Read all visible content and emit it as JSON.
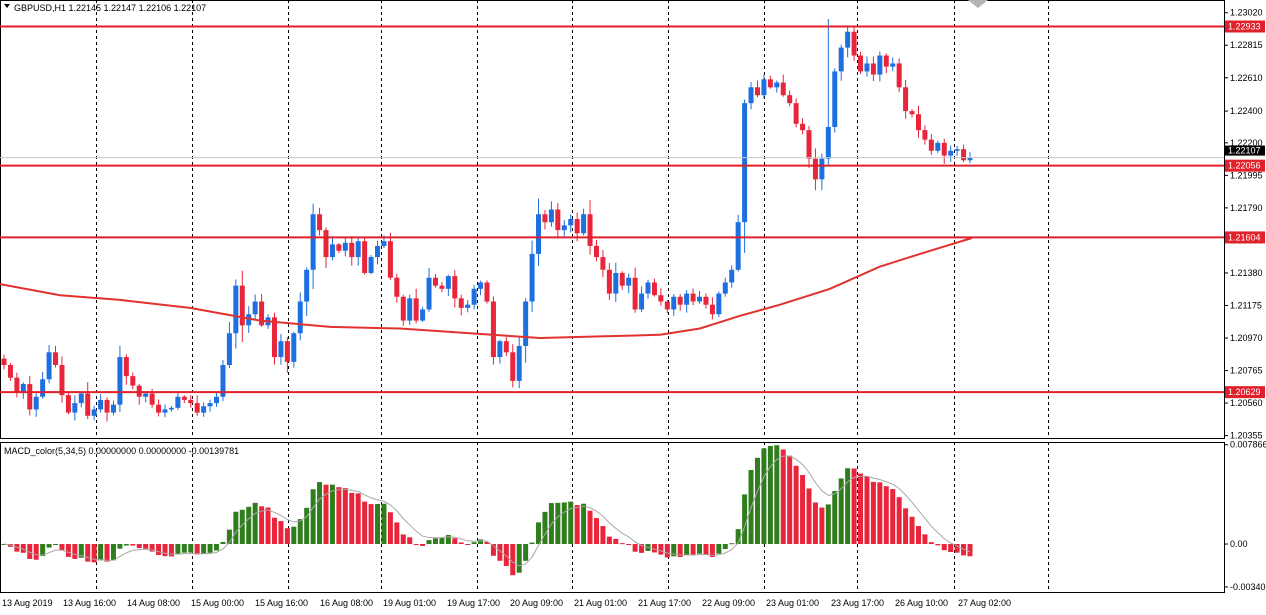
{
  "header": {
    "main_title": "GBPUSD,H1  1.22145 1.22147 1.22106 1.22107",
    "macd_title": "MACD_color(5,34,5) 0.00000000 0.00000000 -0.00139781"
  },
  "colors": {
    "bull": "#1e6fe0",
    "bear": "#e8253a",
    "ma": "#e0322e",
    "level": "#e0202a",
    "hist_pos": "#2f7d1d",
    "hist_neg": "#e8253a",
    "signal": "#a8a8a8",
    "grid": "#000000"
  },
  "chart_data": [
    {
      "type": "candlestick",
      "symbol": "GBPUSD",
      "timeframe": "H1",
      "ylim": [
        1.2034,
        1.231
      ],
      "y_ticks": [
        "1.23020",
        "1.22815",
        "1.22610",
        "1.22400",
        "1.22200",
        "1.21995",
        "1.21790",
        "1.21585",
        "1.21380",
        "1.21175",
        "1.20970",
        "1.20765",
        "1.20560",
        "1.20355"
      ],
      "current_price": "1.22107",
      "x_ticks": [
        "13 Aug 2019",
        "13 Aug 16:00",
        "14 Aug 08:00",
        "15 Aug 00:00",
        "15 Aug 16:00",
        "16 Aug 08:00",
        "19 Aug 01:00",
        "19 Aug 17:00",
        "20 Aug 09:00",
        "21 Aug 01:00",
        "21 Aug 17:00",
        "22 Aug 09:00",
        "23 Aug 01:00",
        "23 Aug 17:00",
        "26 Aug 10:00",
        "27 Aug 02:00"
      ],
      "levels": [
        {
          "value": 1.22933,
          "label": "1.22933"
        },
        {
          "value": 1.22056,
          "label": "1.22056"
        },
        {
          "value": 1.21604,
          "label": "1.21604"
        },
        {
          "value": 1.20629,
          "label": "1.20629"
        }
      ],
      "path_close": [
        1.208,
        1.2072,
        1.2063,
        1.2068,
        1.2052,
        1.206,
        1.2071,
        1.2088,
        1.208,
        1.2061,
        1.205,
        1.2056,
        1.2062,
        1.2048,
        1.2052,
        1.2058,
        1.205,
        1.2055,
        1.2085,
        1.2073,
        1.2067,
        1.206,
        1.2062,
        1.2055,
        1.205,
        1.2052,
        1.2053,
        1.206,
        1.2058,
        1.2056,
        1.205,
        1.2054,
        1.2056,
        1.206,
        1.208,
        1.21,
        1.213,
        1.2105,
        1.2112,
        1.212,
        1.2105,
        1.211,
        1.2085,
        1.2095,
        1.2082,
        1.21,
        1.212,
        1.214,
        1.2175,
        1.2165,
        1.2148,
        1.2156,
        1.2152,
        1.2157,
        1.2148,
        1.2158,
        1.2138,
        1.2148,
        1.2155,
        1.2158,
        1.2135,
        1.2123,
        1.2108,
        1.2122,
        1.2108,
        1.2115,
        1.2135,
        1.213,
        1.2128,
        1.2136,
        1.2122,
        1.2116,
        1.2118,
        1.2128,
        1.2132,
        1.212,
        1.2085,
        1.2095,
        1.2088,
        1.207,
        1.2092,
        1.212,
        1.215,
        1.2175,
        1.217,
        1.2178,
        1.2165,
        1.2168,
        1.2172,
        1.2163,
        1.2175,
        1.2155,
        1.2148,
        1.214,
        1.2125,
        1.2138,
        1.213,
        1.2135,
        1.2115,
        1.2125,
        1.2132,
        1.2124,
        1.212,
        1.2115,
        1.2123,
        1.2118,
        1.2125,
        1.212,
        1.2123,
        1.2118,
        1.2112,
        1.2125,
        1.2132,
        1.214,
        1.217,
        1.2245,
        1.2255,
        1.225,
        1.226,
        1.2255,
        1.2258,
        1.225,
        1.2245,
        1.2232,
        1.2228,
        1.221,
        1.2197,
        1.221,
        1.223,
        1.2265,
        1.228,
        1.229,
        1.2275,
        1.2265,
        1.227,
        1.2263,
        1.2275,
        1.2268,
        1.227,
        1.2255,
        1.224,
        1.2238,
        1.2228,
        1.2222,
        1.2215,
        1.222,
        1.2212,
        1.2215,
        1.2216,
        1.2209,
        1.22107
      ]
    },
    {
      "type": "bar",
      "name": "MACD_color(5,34,5)",
      "ylim": [
        -0.0038,
        0.00808
      ],
      "y_ticks": [
        "0.007866",
        "0.00",
        "-0.00340"
      ],
      "values_description_note": ""
    }
  ]
}
